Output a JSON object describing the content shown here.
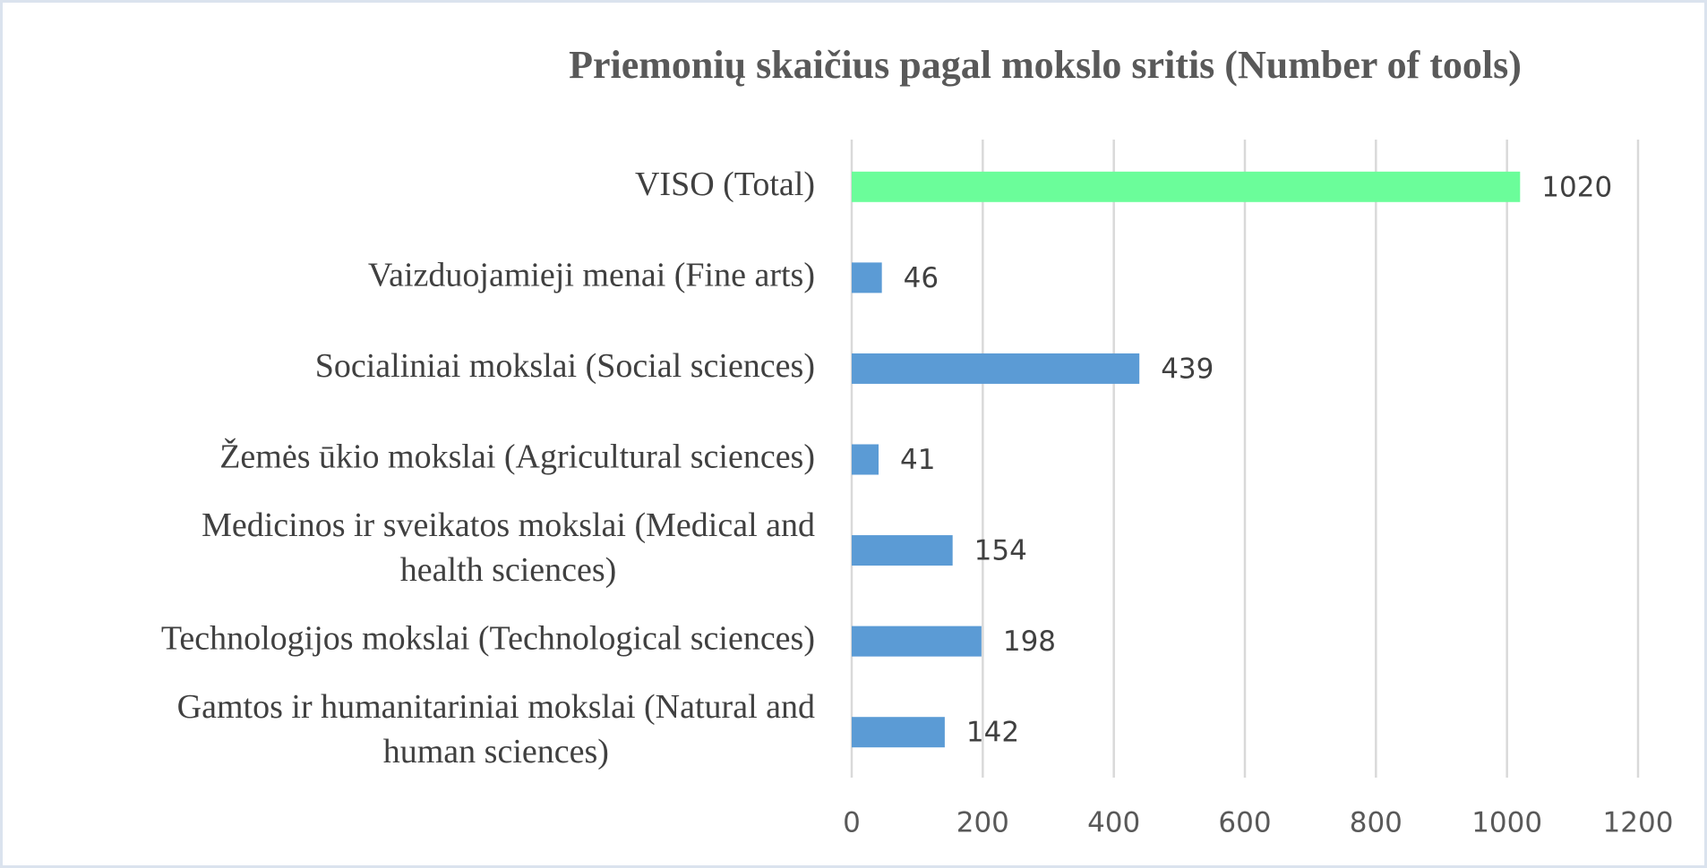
{
  "chart_data": {
    "type": "bar",
    "orientation": "horizontal",
    "title": "Priemonių skaičius pagal mokslo sritis  (Number of tools)",
    "categories": [
      "VISO (Total)",
      "Vaizduojamieji menai (Fine arts)",
      "Socialiniai mokslai (Social sciences)",
      "Žemės ūkio mokslai (Agricultural sciences)",
      "Medicinos ir sveikatos  mokslai (Medical and\nhealth sciences)",
      "Technologijos mokslai (Technological sciences)",
      "Gamtos ir humanitariniai mokslai (Natural and\nhuman sciences)"
    ],
    "values": [
      1020,
      46,
      439,
      41,
      154,
      198,
      142
    ],
    "colors": [
      "#6bfd9a",
      "#5b9bd5",
      "#5b9bd5",
      "#5b9bd5",
      "#5b9bd5",
      "#5b9bd5",
      "#5b9bd5"
    ],
    "xlim": [
      0,
      1200
    ],
    "xticks": [
      0,
      200,
      400,
      600,
      800,
      1000,
      1200
    ],
    "grid": true,
    "data_labels": true
  }
}
